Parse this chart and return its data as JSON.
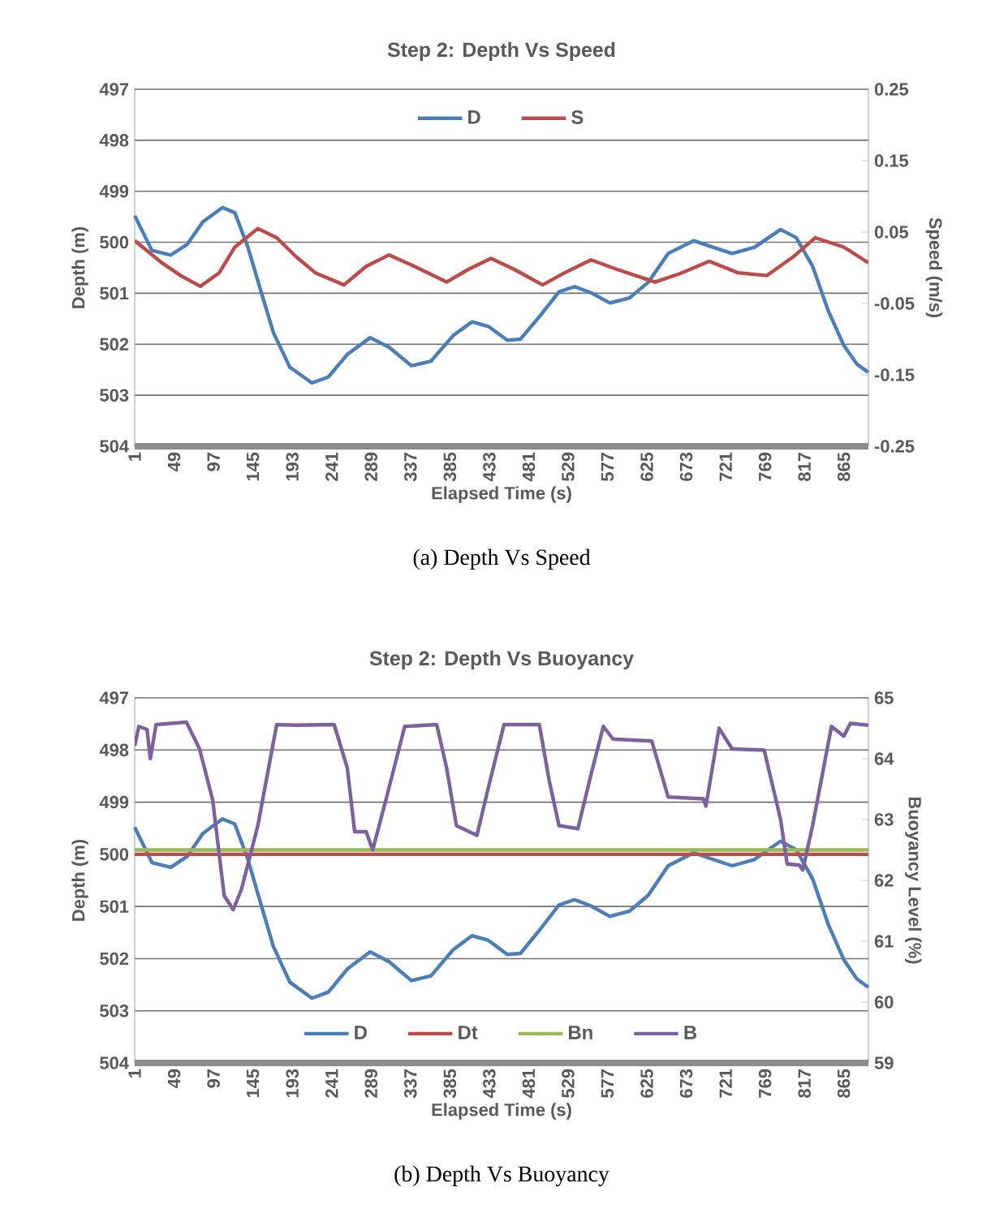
{
  "chart_data": [
    {
      "type": "line",
      "title": "Step 2: Depth Vs Speed",
      "xlabel": "Elapsed Time (s)",
      "ylabel": "Depth (m)",
      "y2label": "Speed (m/s)",
      "x": [
        1,
        22,
        45,
        65,
        84,
        108,
        123,
        139,
        155,
        170,
        190,
        217,
        237,
        260,
        288,
        311,
        338,
        362,
        389,
        412,
        432,
        455,
        471,
        494,
        518,
        537,
        557,
        580,
        604,
        627,
        651,
        682,
        706,
        729,
        756,
        788,
        807,
        827,
        846,
        865,
        881,
        895
      ],
      "series": [
        {
          "name": "D",
          "color": "#4a7ebb",
          "values": [
            499.48,
            500.16,
            500.25,
            500.04,
            499.6,
            499.32,
            499.42,
            500.1,
            500.97,
            501.77,
            502.45,
            502.76,
            502.64,
            502.2,
            501.87,
            502.06,
            502.42,
            502.33,
            501.83,
            501.56,
            501.65,
            501.92,
            501.9,
            501.46,
            500.97,
            500.87,
            500.99,
            501.19,
            501.09,
            500.78,
            500.22,
            499.97,
            500.1,
            500.22,
            500.1,
            499.75,
            499.91,
            500.47,
            501.34,
            502.02,
            502.39,
            502.55
          ]
        },
        {
          "name": "S",
          "color": "#be4b48",
          "axis": "y2",
          "x": [
            1,
            34,
            57,
            81,
            104,
            123,
            151,
            174,
            198,
            221,
            256,
            283,
            311,
            338,
            381,
            408,
            435,
            463,
            498,
            525,
            557,
            588,
            635,
            666,
            701,
            736,
            771,
            803,
            830,
            865,
            895
          ],
          "values": [
            0.038,
            0.007,
            -0.011,
            -0.026,
            -0.007,
            0.029,
            0.055,
            0.042,
            0.015,
            -0.007,
            -0.024,
            0.002,
            0.018,
            0.004,
            -0.02,
            -0.002,
            0.013,
            -0.002,
            -0.024,
            -0.007,
            0.011,
            -0.002,
            -0.02,
            -0.008,
            0.009,
            -0.007,
            -0.011,
            0.015,
            0.042,
            0.029,
            0.007
          ]
        }
      ],
      "xlim": [
        1,
        895
      ],
      "xticks": [
        1,
        49,
        97,
        145,
        193,
        241,
        289,
        337,
        385,
        433,
        481,
        529,
        577,
        625,
        673,
        721,
        769,
        817,
        865
      ],
      "ylim": [
        504,
        497
      ],
      "yticks": [
        497,
        498,
        499,
        500,
        501,
        502,
        503,
        504
      ],
      "y2lim": [
        -0.25,
        0.25
      ],
      "y2ticks": [
        -0.25,
        -0.15,
        -0.05,
        0.05,
        0.15,
        0.25
      ],
      "grid": "y",
      "legend": "top",
      "annotations": [
        "(a) Depth Vs Speed"
      ]
    },
    {
      "type": "line",
      "title": "Step 2: Depth Vs Buoyancy",
      "xlabel": "Elapsed Time (s)",
      "ylabel": "Depth (m)",
      "y2label": "Buoyancy Level (%)",
      "x": [
        1,
        22,
        45,
        65,
        84,
        108,
        123,
        139,
        155,
        170,
        190,
        217,
        237,
        260,
        288,
        311,
        338,
        362,
        389,
        412,
        432,
        455,
        471,
        494,
        518,
        537,
        557,
        580,
        604,
        627,
        651,
        682,
        706,
        729,
        756,
        788,
        807,
        827,
        846,
        865,
        881,
        895
      ],
      "series": [
        {
          "name": "D",
          "color": "#4a7ebb",
          "values": [
            499.48,
            500.16,
            500.25,
            500.04,
            499.6,
            499.32,
            499.42,
            500.1,
            500.97,
            501.77,
            502.45,
            502.76,
            502.64,
            502.2,
            501.87,
            502.06,
            502.42,
            502.33,
            501.83,
            501.56,
            501.65,
            501.92,
            501.9,
            501.46,
            500.97,
            500.87,
            500.99,
            501.19,
            501.09,
            500.78,
            500.22,
            499.97,
            500.1,
            500.22,
            500.1,
            499.75,
            499.91,
            500.47,
            501.34,
            502.02,
            502.39,
            502.55
          ]
        },
        {
          "name": "Dt",
          "color": "#be4b48",
          "x": [
            1,
            895
          ],
          "values": [
            500,
            500
          ]
        },
        {
          "name": "Bn",
          "color": "#98b954",
          "axis": "y2",
          "x": [
            1,
            895
          ],
          "values": [
            62.5,
            62.5
          ]
        },
        {
          "name": "B",
          "color": "#7d60a0",
          "axis": "y2",
          "x": [
            1,
            6,
            16,
            20,
            27,
            64,
            80,
            96,
            110,
            121,
            131,
            151,
            174,
            198,
            244,
            260,
            269,
            283,
            291,
            307,
            330,
            369,
            381,
            393,
            418,
            432,
            451,
            494,
            506,
            518,
            541,
            557,
            572,
            584,
            631,
            651,
            694,
            697,
            713,
            729,
            768,
            788,
            796,
            811,
            815,
            827,
            850,
            865,
            873,
            895
          ],
          "values": [
            64.21,
            64.53,
            64.48,
            64.0,
            64.56,
            64.6,
            64.16,
            63.32,
            61.75,
            61.52,
            61.85,
            62.9,
            64.56,
            64.55,
            64.56,
            63.85,
            62.8,
            62.8,
            62.5,
            63.32,
            64.53,
            64.56,
            63.85,
            62.9,
            62.74,
            63.53,
            64.56,
            64.56,
            63.64,
            62.9,
            62.85,
            63.74,
            64.53,
            64.32,
            64.29,
            63.37,
            63.34,
            63.22,
            64.5,
            64.16,
            64.14,
            63.0,
            62.27,
            62.25,
            62.17,
            62.9,
            64.53,
            64.37,
            64.58,
            64.55
          ]
        }
      ],
      "xlim": [
        1,
        895
      ],
      "xticks": [
        1,
        49,
        97,
        145,
        193,
        241,
        289,
        337,
        385,
        433,
        481,
        529,
        577,
        625,
        673,
        721,
        769,
        817,
        865
      ],
      "ylim": [
        504,
        497
      ],
      "yticks": [
        497,
        498,
        499,
        500,
        501,
        502,
        503,
        504
      ],
      "y2lim": [
        59,
        65
      ],
      "y2ticks": [
        59,
        60,
        61,
        62,
        63,
        64,
        65
      ],
      "grid": "y",
      "legend": "bottom",
      "annotations": [
        "(b) Depth Vs Buoyancy"
      ]
    }
  ]
}
